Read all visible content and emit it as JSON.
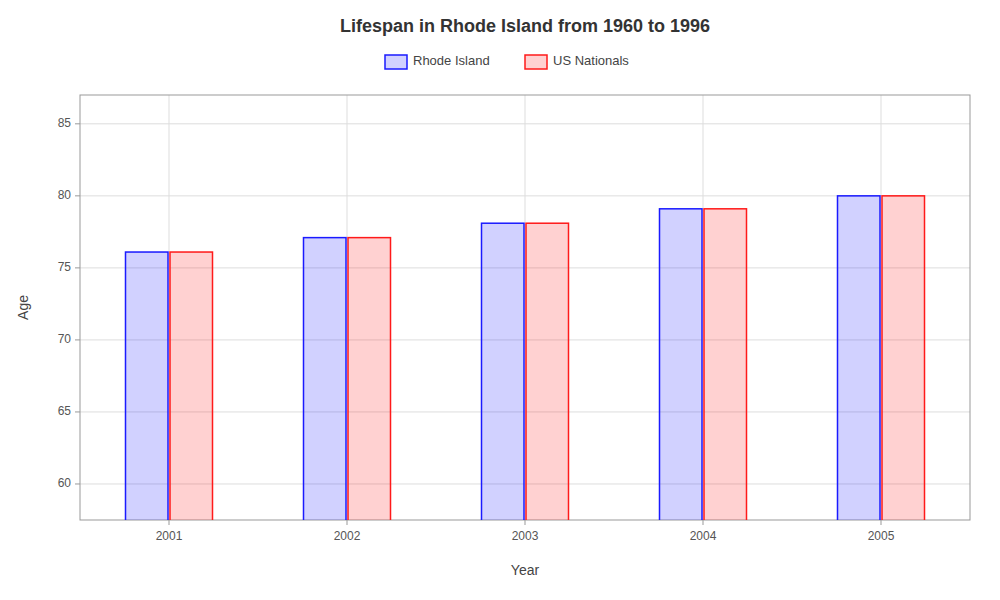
{
  "chart_data": {
    "type": "bar",
    "title": "Lifespan in Rhode Island from 1960 to 1996",
    "xlabel": "Year",
    "ylabel": "Age",
    "categories": [
      "2001",
      "2002",
      "2003",
      "2004",
      "2005"
    ],
    "series": [
      {
        "name": "Rhode Island",
        "color": "#1a1aff",
        "values": [
          76.1,
          77.1,
          78.1,
          79.1,
          80.0
        ]
      },
      {
        "name": "US Nationals",
        "color": "#ff1a1a",
        "values": [
          76.1,
          77.1,
          78.1,
          79.1,
          80.0
        ]
      }
    ],
    "ylim": [
      57.5,
      87
    ],
    "yticks": [
      60,
      65,
      70,
      75,
      80,
      85
    ],
    "grid": true,
    "legend": "top"
  }
}
